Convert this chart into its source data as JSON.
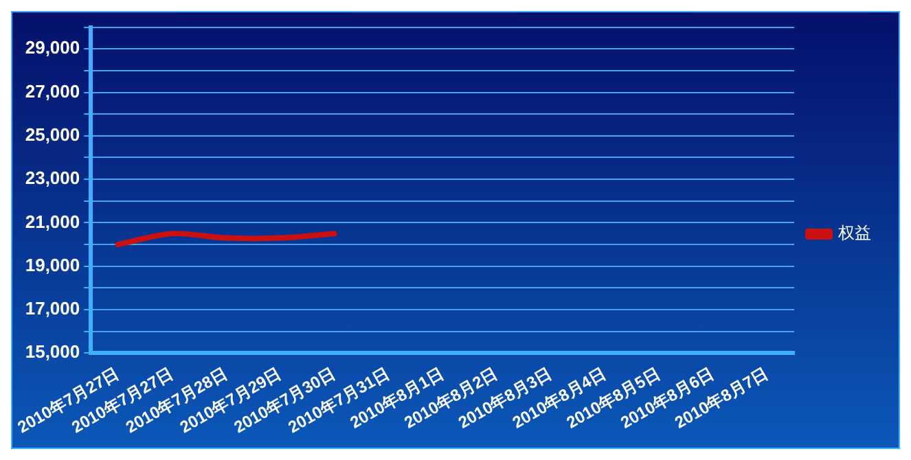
{
  "chart_data": {
    "type": "line",
    "categories": [
      "2010年7月27日",
      "2010年7月27日",
      "2010年7月28日",
      "2010年7月29日",
      "2010年7月30日",
      "2010年7月31日",
      "2010年8月1日",
      "2010年8月2日",
      "2010年8月3日",
      "2010年8月4日",
      "2010年8月5日",
      "2010年8月6日",
      "2010年8月7日"
    ],
    "series": [
      {
        "name": "权益",
        "color": "#cc1010",
        "values": [
          20000,
          20500,
          20300,
          20300,
          20500,
          null,
          null,
          null,
          null,
          null,
          null,
          null,
          null
        ]
      }
    ],
    "ylim": [
      15000,
      30000
    ],
    "yticks": [
      {
        "value": 15000,
        "label": "15,000"
      },
      {
        "value": 16000,
        "label": null
      },
      {
        "value": 17000,
        "label": "17,000"
      },
      {
        "value": 18000,
        "label": null
      },
      {
        "value": 19000,
        "label": "19,000"
      },
      {
        "value": 20000,
        "label": null
      },
      {
        "value": 21000,
        "label": "21,000"
      },
      {
        "value": 22000,
        "label": null
      },
      {
        "value": 23000,
        "label": "23,000"
      },
      {
        "value": 24000,
        "label": null
      },
      {
        "value": 25000,
        "label": "25,000"
      },
      {
        "value": 26000,
        "label": null
      },
      {
        "value": 27000,
        "label": "27,000"
      },
      {
        "value": 28000,
        "label": null
      },
      {
        "value": 29000,
        "label": "29,000"
      },
      {
        "value": 30000,
        "label": null
      }
    ],
    "grid": "y",
    "legend": "right",
    "marker": "none",
    "line_style": "solid"
  }
}
